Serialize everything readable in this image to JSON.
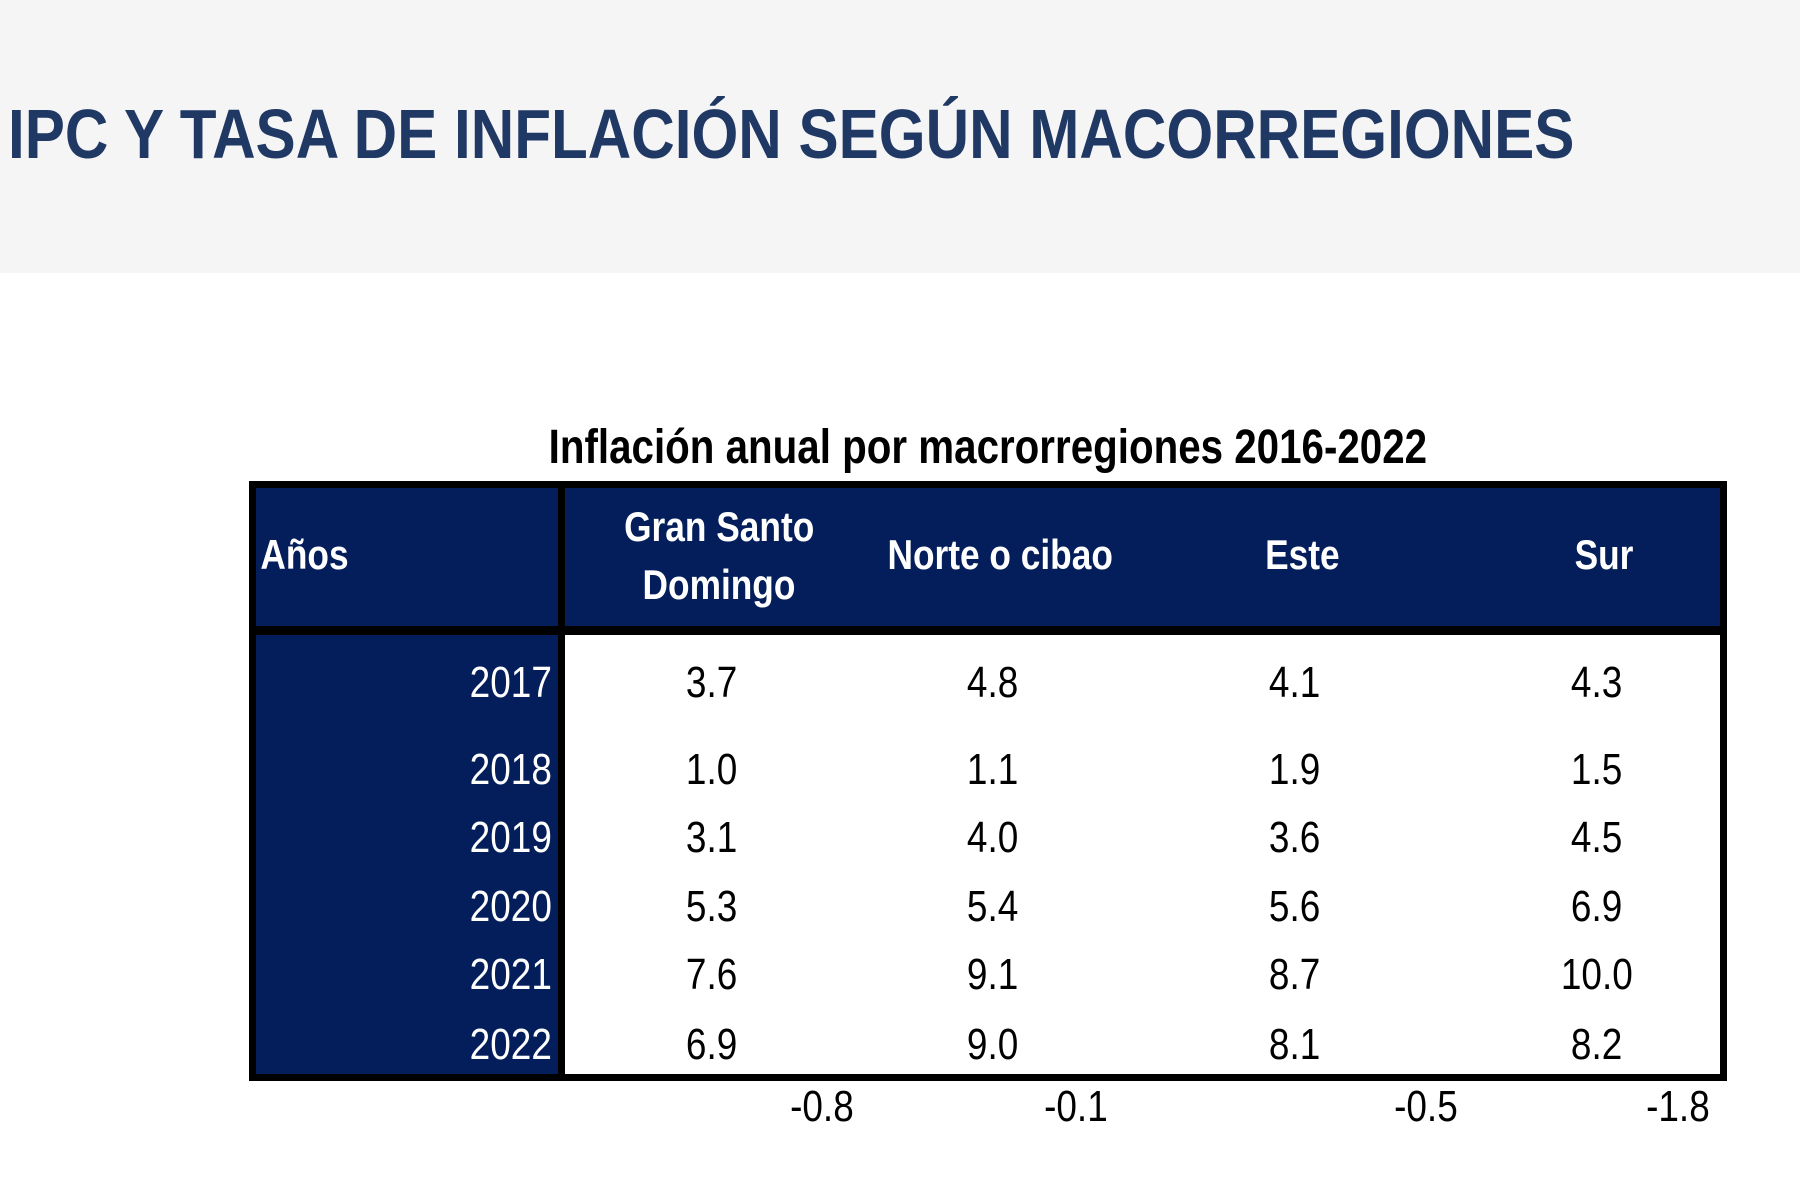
{
  "page_title": "IPC Y TASA DE INFLACIÓN SEGÚN MACORREGIONES",
  "table": {
    "title": "Inflación anual por macrorregiones 2016-2022",
    "headers": [
      "Años",
      "Gran Santo Domingo",
      "Norte o cibao",
      "Este",
      "Sur"
    ],
    "header_gsd_line1": "Gran Santo",
    "header_gsd_line2": "Domingo",
    "rows": [
      {
        "year": "2017",
        "values": [
          "3.7",
          "4.8",
          "4.1",
          "4.3"
        ]
      },
      {
        "year": "2018",
        "values": [
          "1.0",
          "1.1",
          "1.9",
          "1.5"
        ]
      },
      {
        "year": "2019",
        "values": [
          "3.1",
          "4.0",
          "3.6",
          "4.5"
        ]
      },
      {
        "year": "2020",
        "values": [
          "5.3",
          "5.4",
          "5.6",
          "6.9"
        ]
      },
      {
        "year": "2021",
        "values": [
          "7.6",
          "9.1",
          "8.7",
          "10.0"
        ]
      },
      {
        "year": "2022",
        "values": [
          "6.9",
          "9.0",
          "8.1",
          "8.2"
        ]
      }
    ],
    "below_values": [
      "-0.8",
      "-0.1",
      "-0.5",
      "-1.8"
    ],
    "colors": {
      "header_bg": "#031e5a",
      "title_color": "#203864"
    }
  }
}
